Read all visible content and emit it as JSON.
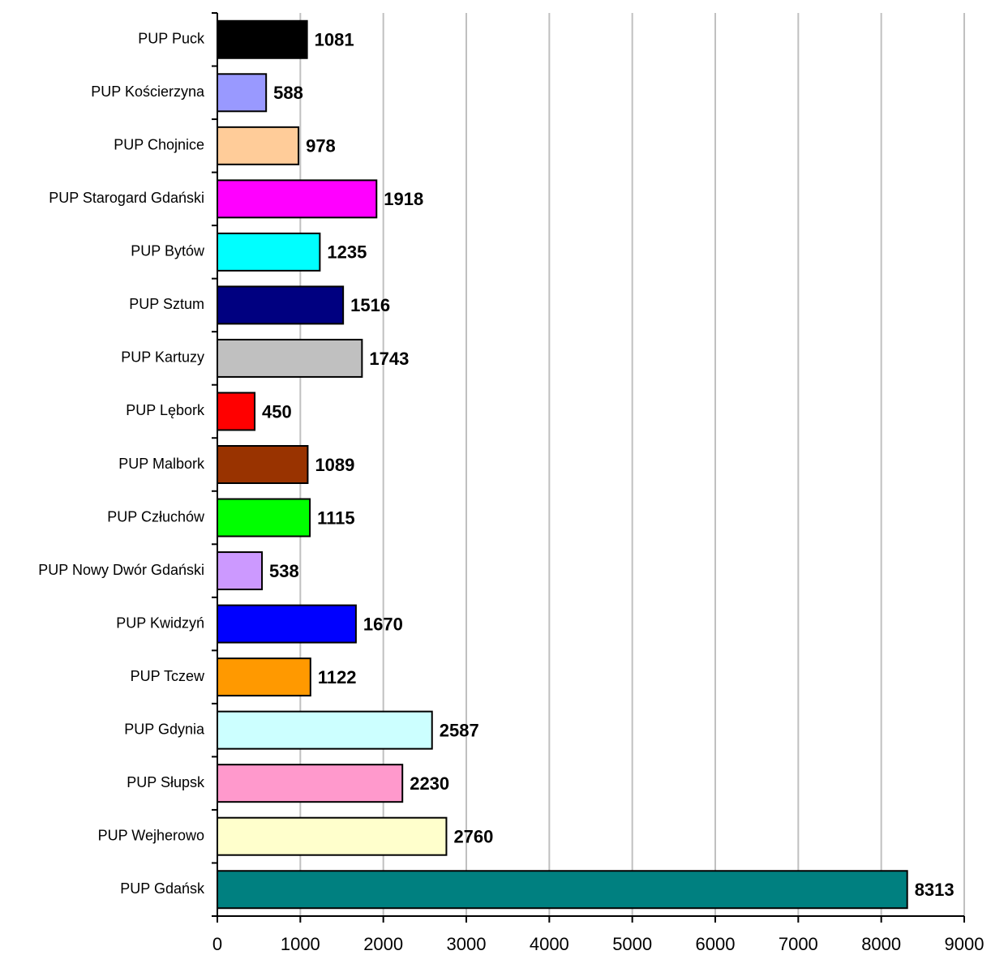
{
  "chart_data": {
    "type": "barh",
    "categories": [
      "PUP Puck",
      "PUP Kościerzyna",
      "PUP Chojnice",
      "PUP Starogard Gdański",
      "PUP Bytów",
      "PUP Sztum",
      "PUP Kartuzy",
      "PUP Lębork",
      "PUP Malbork",
      "PUP Człuchów",
      "PUP Nowy Dwór Gdański",
      "PUP Kwidzyń",
      "PUP Tczew",
      "PUP Gdynia",
      "PUP Słupsk",
      "PUP Wejherowo",
      "PUP Gdańsk"
    ],
    "values": [
      1081,
      588,
      978,
      1918,
      1235,
      1516,
      1743,
      450,
      1089,
      1115,
      538,
      1670,
      1122,
      2587,
      2230,
      2760,
      8313
    ],
    "colors": [
      "#000000",
      "#9999ff",
      "#ffcc99",
      "#ff00ff",
      "#00ffff",
      "#000080",
      "#c0c0c0",
      "#ff0000",
      "#993300",
      "#00ff00",
      "#cc99ff",
      "#0000ff",
      "#ff9900",
      "#ccffff",
      "#ff99cc",
      "#ffffcc",
      "#008080"
    ],
    "xlim": [
      0,
      9000
    ],
    "xticks": [
      0,
      1000,
      2000,
      3000,
      4000,
      5000,
      6000,
      7000,
      8000,
      9000
    ],
    "grid": true
  }
}
